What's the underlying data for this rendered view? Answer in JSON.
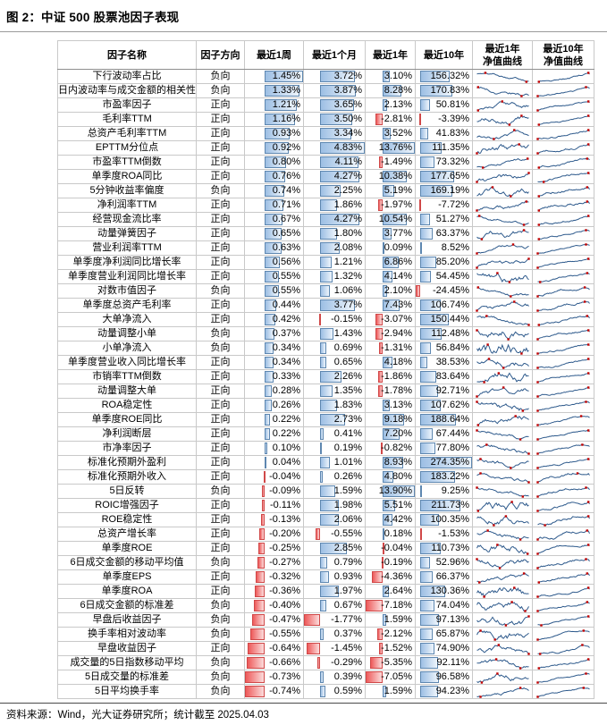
{
  "title": "图 2：中证 500 股票池因子表现",
  "source_note": "资料来源：Wind，光大证券研究所；统计截至 2025.04.03",
  "colors": {
    "bar_positive_border": "#5e87b0",
    "bar_positive_fill": "#9dbfe4",
    "bar_negative_border": "#d04848",
    "bar_negative_fill": "#ee5a5a",
    "spark_line": "#2e5a8c",
    "spark_marker": "#c00000"
  },
  "table": {
    "headers": {
      "name": "因子名称",
      "direction": "因子方向",
      "week": "最近1周",
      "month": "最近1个月",
      "year": "最近1年",
      "ten_year": "最近10年",
      "nav_1y": "最近1年\n净值曲线",
      "nav_10y": "最近10年\n净值曲线"
    },
    "rows": [
      {
        "name": "下行波动率占比",
        "direction": "负向",
        "week": "1.45%",
        "month": "3.72%",
        "year": "3.10%",
        "ten_year": "156.32%"
      },
      {
        "name": "日内波动率与成交金额的相关性",
        "direction": "负向",
        "week": "1.33%",
        "month": "3.87%",
        "year": "8.28%",
        "ten_year": "170.83%"
      },
      {
        "name": "市盈率因子",
        "direction": "正向",
        "week": "1.21%",
        "month": "3.65%",
        "year": "2.13%",
        "ten_year": "50.81%"
      },
      {
        "name": "毛利率TTM",
        "direction": "正向",
        "week": "1.16%",
        "month": "3.50%",
        "year": "-2.81%",
        "ten_year": "-3.39%"
      },
      {
        "name": "总资产毛利率TTM",
        "direction": "正向",
        "week": "0.93%",
        "month": "3.34%",
        "year": "3.52%",
        "ten_year": "41.83%"
      },
      {
        "name": "EPTTM分位点",
        "direction": "正向",
        "week": "0.92%",
        "month": "4.83%",
        "year": "13.76%",
        "ten_year": "111.35%"
      },
      {
        "name": "市盈率TTM倒数",
        "direction": "正向",
        "week": "0.80%",
        "month": "4.11%",
        "year": "-1.49%",
        "ten_year": "73.32%"
      },
      {
        "name": "单季度ROA同比",
        "direction": "正向",
        "week": "0.76%",
        "month": "4.27%",
        "year": "10.38%",
        "ten_year": "177.65%"
      },
      {
        "name": "5分钟收益率偏度",
        "direction": "负向",
        "week": "0.74%",
        "month": "2.25%",
        "year": "5.19%",
        "ten_year": "169.19%"
      },
      {
        "name": "净利润率TTM",
        "direction": "正向",
        "week": "0.71%",
        "month": "1.86%",
        "year": "-1.97%",
        "ten_year": "-7.72%"
      },
      {
        "name": "经营现金流比率",
        "direction": "正向",
        "week": "0.67%",
        "month": "4.27%",
        "year": "10.54%",
        "ten_year": "51.27%"
      },
      {
        "name": "动量弹簧因子",
        "direction": "正向",
        "week": "0.65%",
        "month": "1.80%",
        "year": "3.77%",
        "ten_year": "63.37%"
      },
      {
        "name": "营业利润率TTM",
        "direction": "正向",
        "week": "0.63%",
        "month": "2.08%",
        "year": "0.09%",
        "ten_year": "8.52%"
      },
      {
        "name": "单季度净利润同比增长率",
        "direction": "正向",
        "week": "0.56%",
        "month": "1.21%",
        "year": "6.86%",
        "ten_year": "85.20%"
      },
      {
        "name": "单季度营业利润同比增长率",
        "direction": "正向",
        "week": "0.55%",
        "month": "1.32%",
        "year": "4.14%",
        "ten_year": "54.45%"
      },
      {
        "name": "对数市值因子",
        "direction": "负向",
        "week": "0.55%",
        "month": "1.06%",
        "year": "2.10%",
        "ten_year": "-24.45%"
      },
      {
        "name": "单季度总资产毛利率",
        "direction": "正向",
        "week": "0.44%",
        "month": "3.77%",
        "year": "7.43%",
        "ten_year": "106.74%"
      },
      {
        "name": "大单净流入",
        "direction": "正向",
        "week": "0.42%",
        "month": "-0.15%",
        "year": "-3.07%",
        "ten_year": "150.44%"
      },
      {
        "name": "动量调整小单",
        "direction": "负向",
        "week": "0.37%",
        "month": "1.43%",
        "year": "-2.94%",
        "ten_year": "112.48%"
      },
      {
        "name": "小单净流入",
        "direction": "负向",
        "week": "0.34%",
        "month": "0.69%",
        "year": "-1.31%",
        "ten_year": "56.84%"
      },
      {
        "name": "单季度营业收入同比增长率",
        "direction": "正向",
        "week": "0.34%",
        "month": "0.65%",
        "year": "4.18%",
        "ten_year": "38.53%"
      },
      {
        "name": "市销率TTM倒数",
        "direction": "正向",
        "week": "0.33%",
        "month": "2.26%",
        "year": "-1.86%",
        "ten_year": "83.64%"
      },
      {
        "name": "动量调整大单",
        "direction": "正向",
        "week": "0.28%",
        "month": "1.35%",
        "year": "-1.78%",
        "ten_year": "92.71%"
      },
      {
        "name": "ROA稳定性",
        "direction": "正向",
        "week": "0.26%",
        "month": "1.83%",
        "year": "3.13%",
        "ten_year": "107.62%"
      },
      {
        "name": "单季度ROE同比",
        "direction": "正向",
        "week": "0.22%",
        "month": "2.73%",
        "year": "9.18%",
        "ten_year": "188.64%"
      },
      {
        "name": "净利润断层",
        "direction": "正向",
        "week": "0.22%",
        "month": "0.41%",
        "year": "7.20%",
        "ten_year": "67.44%"
      },
      {
        "name": "市净率因子",
        "direction": "正向",
        "week": "0.10%",
        "month": "0.19%",
        "year": "-0.82%",
        "ten_year": "77.80%"
      },
      {
        "name": "标准化预期外盈利",
        "direction": "正向",
        "week": "0.04%",
        "month": "1.01%",
        "year": "8.93%",
        "ten_year": "274.35%"
      },
      {
        "name": "标准化预期外收入",
        "direction": "正向",
        "week": "-0.04%",
        "month": "0.26%",
        "year": "4.80%",
        "ten_year": "183.22%"
      },
      {
        "name": "5日反转",
        "direction": "负向",
        "week": "-0.09%",
        "month": "1.59%",
        "year": "13.90%",
        "ten_year": "9.25%"
      },
      {
        "name": "ROIC增强因子",
        "direction": "正向",
        "week": "-0.11%",
        "month": "1.98%",
        "year": "5.51%",
        "ten_year": "211.73%"
      },
      {
        "name": "ROE稳定性",
        "direction": "正向",
        "week": "-0.13%",
        "month": "2.06%",
        "year": "4.42%",
        "ten_year": "100.35%"
      },
      {
        "name": "总资产增长率",
        "direction": "正向",
        "week": "-0.20%",
        "month": "-0.55%",
        "year": "0.18%",
        "ten_year": "-1.53%"
      },
      {
        "name": "单季度ROE",
        "direction": "正向",
        "week": "-0.25%",
        "month": "2.85%",
        "year": "-0.04%",
        "ten_year": "110.73%"
      },
      {
        "name": "6日成交金额的移动平均值",
        "direction": "负向",
        "week": "-0.27%",
        "month": "0.79%",
        "year": "-0.19%",
        "ten_year": "52.96%"
      },
      {
        "name": "单季度EPS",
        "direction": "正向",
        "week": "-0.32%",
        "month": "0.93%",
        "year": "-4.36%",
        "ten_year": "66.37%"
      },
      {
        "name": "单季度ROA",
        "direction": "正向",
        "week": "-0.36%",
        "month": "1.97%",
        "year": "2.64%",
        "ten_year": "130.36%"
      },
      {
        "name": "6日成交金额的标准差",
        "direction": "负向",
        "week": "-0.40%",
        "month": "0.67%",
        "year": "-7.18%",
        "ten_year": "74.04%"
      },
      {
        "name": "早盘后收益因子",
        "direction": "负向",
        "week": "-0.47%",
        "month": "-1.77%",
        "year": "1.59%",
        "ten_year": "97.13%"
      },
      {
        "name": "换手率相对波动率",
        "direction": "负向",
        "week": "-0.55%",
        "month": "0.37%",
        "year": "-2.12%",
        "ten_year": "65.87%"
      },
      {
        "name": "早盘收益因子",
        "direction": "正向",
        "week": "-0.64%",
        "month": "-1.45%",
        "year": "-1.52%",
        "ten_year": "74.90%"
      },
      {
        "name": "成交量的5日指数移动平均",
        "direction": "负向",
        "week": "-0.66%",
        "month": "-0.29%",
        "year": "-5.35%",
        "ten_year": "92.11%"
      },
      {
        "name": "5日成交量的标准差",
        "direction": "负向",
        "week": "-0.73%",
        "month": "0.39%",
        "year": "-7.05%",
        "ten_year": "96.58%"
      },
      {
        "name": "5日平均换手率",
        "direction": "负向",
        "week": "-0.74%",
        "month": "0.59%",
        "year": "1.59%",
        "ten_year": "94.23%"
      }
    ]
  }
}
